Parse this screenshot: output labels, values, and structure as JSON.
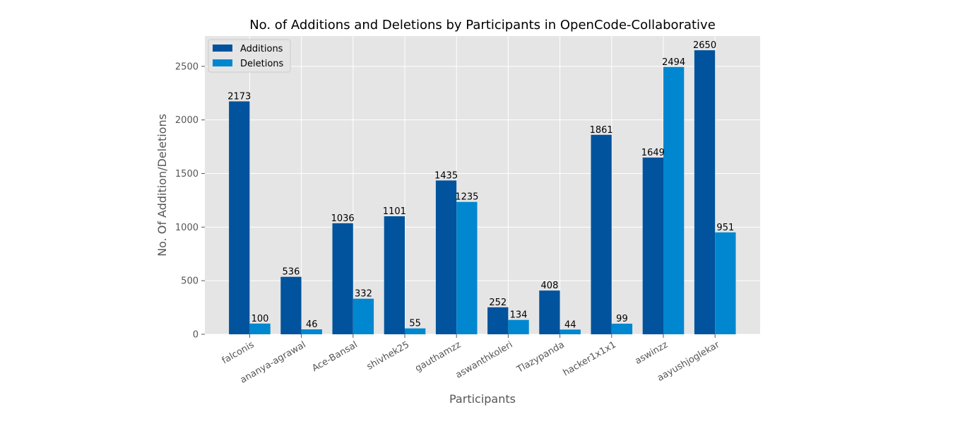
{
  "chart_data": {
    "type": "bar",
    "title": "No. of Additions and Deletions by Participants in OpenCode-Collaborative",
    "xlabel": "Participants",
    "ylabel": "No. Of Addition/Deletions",
    "categories": [
      "falconis",
      "ananya-agrawal",
      "Ace-Bansal",
      "shivhek25",
      "gauthamzz",
      "aswanthkoleri",
      "Tlazypanda",
      "hacker1x1x1",
      "aswinzz",
      "aayushjoglekar"
    ],
    "series": [
      {
        "name": "Additions",
        "color": "#00539c",
        "values": [
          2173,
          536,
          1036,
          1101,
          1435,
          252,
          408,
          1861,
          1649,
          2650
        ]
      },
      {
        "name": "Deletions",
        "color": "#0087cf",
        "values": [
          100,
          46,
          332,
          55,
          1235,
          134,
          44,
          99,
          2494,
          951
        ]
      }
    ],
    "ylim": [
      0,
      2782.5
    ],
    "yticks": [
      0,
      500,
      1000,
      1500,
      2000,
      2500
    ],
    "grid": true,
    "legend_position": "top-left",
    "background_color": "#e5e5e5",
    "grid_color": "#ffffff"
  }
}
